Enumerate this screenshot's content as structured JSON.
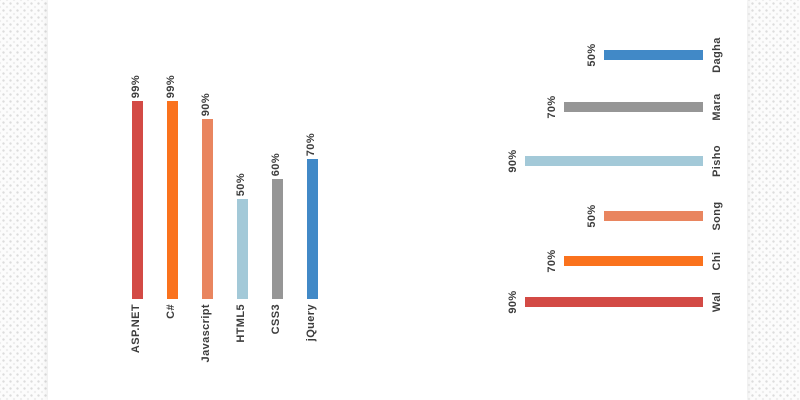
{
  "text_color": "#3d3d3d",
  "page_background": "#ffffff",
  "chart_data": [
    {
      "type": "bar",
      "orientation": "vertical",
      "title": "",
      "categories": [
        "ASP.NET",
        "C#",
        "Javascript",
        "HTML5",
        "CSS3",
        "jQuery"
      ],
      "values": [
        99,
        99,
        90,
        50,
        60,
        70
      ],
      "value_labels": [
        "99%",
        "99%",
        "90%",
        "50%",
        "60%",
        "70%"
      ],
      "colors": [
        "#d34a45",
        "#fa721d",
        "#e9855f",
        "#a3c9d8",
        "#969696",
        "#4189c7"
      ],
      "xlabel": "",
      "ylabel": "",
      "ylim": [
        0,
        100
      ],
      "grid": false,
      "legend": "none",
      "value_label_position": "above-bar-rotated",
      "category_label_position": "below-bar-rotated"
    },
    {
      "type": "bar",
      "orientation": "horizontal",
      "title": "",
      "categories": [
        "Dagha",
        "Mara",
        "Pisho",
        "Song",
        "Chi",
        "Wal"
      ],
      "values": [
        50,
        70,
        90,
        50,
        70,
        90
      ],
      "value_labels": [
        "50%",
        "70%",
        "90%",
        "50%",
        "70%",
        "90%"
      ],
      "colors": [
        "#4189c7",
        "#969696",
        "#a3c9d8",
        "#e9855f",
        "#fa721d",
        "#d34a45"
      ],
      "xlabel": "",
      "ylabel": "",
      "xlim": [
        0,
        100
      ],
      "grid": false,
      "legend": "none",
      "bars_anchored": "right",
      "value_label_position": "left-of-bar-rotated",
      "category_label_position": "right-of-bar-rotated"
    }
  ]
}
